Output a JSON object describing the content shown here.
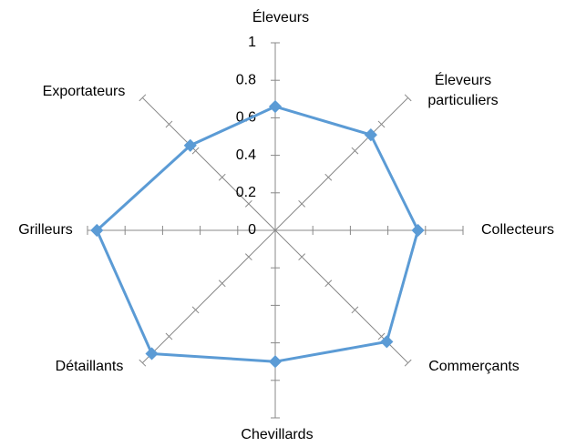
{
  "chart_data": {
    "type": "radar",
    "categories": [
      "Éleveurs",
      "Éleveurs particuliers",
      "Collecteurs",
      "Commerçants",
      "Chevillards",
      "Détaillants",
      "Grilleurs",
      "Exportateurs"
    ],
    "series": [
      {
        "color": "#5b9bd5",
        "values": [
          0.66,
          0.72,
          0.76,
          0.84,
          0.7,
          0.93,
          0.95,
          0.64
        ]
      }
    ],
    "rlim": [
      0,
      1
    ],
    "rticks": [
      0,
      {
        "value": 0.2,
        "label": "0.2"
      },
      {
        "value": 0.4,
        "label": "0.4"
      },
      {
        "value": 0.6,
        "label": "0.6"
      },
      {
        "value": 0.8,
        "label": "0.8"
      },
      1
    ]
  }
}
